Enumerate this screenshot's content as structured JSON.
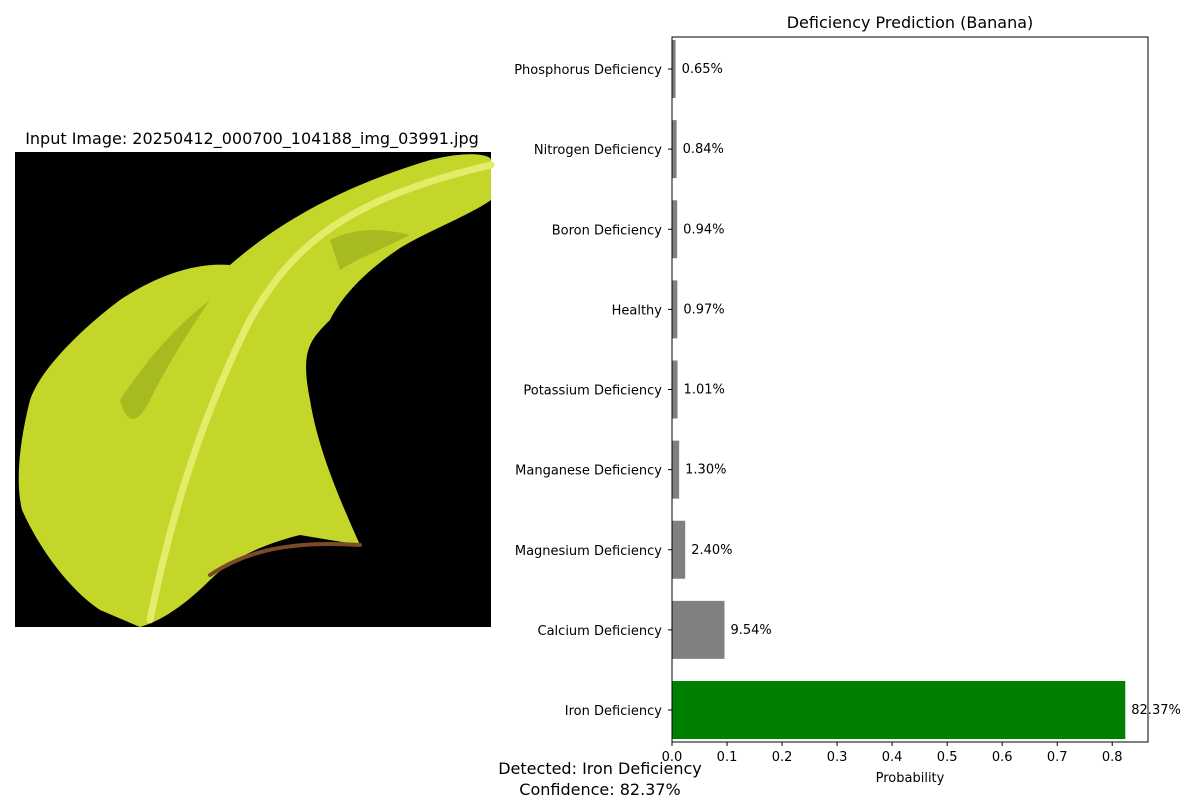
{
  "image_panel": {
    "title": "Input Image: 20250412_000700_104188_img_03991.jpg",
    "background_color": "#000000",
    "leaf_color": "#c5d62a"
  },
  "summary": {
    "detected": "Detected: Iron Deficiency",
    "confidence": "Confidence: 82.37%"
  },
  "chart_data": {
    "type": "bar",
    "orientation": "horizontal",
    "title": "Deficiency Prediction (Banana)",
    "xlabel": "Probability",
    "ylabel": "",
    "xlim": [
      0,
      0.865
    ],
    "grid": false,
    "x_ticks": [
      "0.0",
      "0.1",
      "0.2",
      "0.3",
      "0.4",
      "0.5",
      "0.6",
      "0.7",
      "0.8"
    ],
    "categories": [
      "Iron Deficiency",
      "Calcium Deficiency",
      "Magnesium Deficiency",
      "Manganese Deficiency",
      "Potassium Deficiency",
      "Healthy",
      "Boron Deficiency",
      "Nitrogen Deficiency",
      "Phosphorus Deficiency"
    ],
    "values": [
      0.8237,
      0.0954,
      0.024,
      0.013,
      0.0101,
      0.0097,
      0.0094,
      0.0084,
      0.0065
    ],
    "value_labels": [
      "82.37%",
      "9.54%",
      "2.40%",
      "1.30%",
      "1.01%",
      "0.97%",
      "0.94%",
      "0.84%",
      "0.65%"
    ],
    "highlight_color": "#008000",
    "bar_color": "#808080",
    "highlight_index": 0
  }
}
